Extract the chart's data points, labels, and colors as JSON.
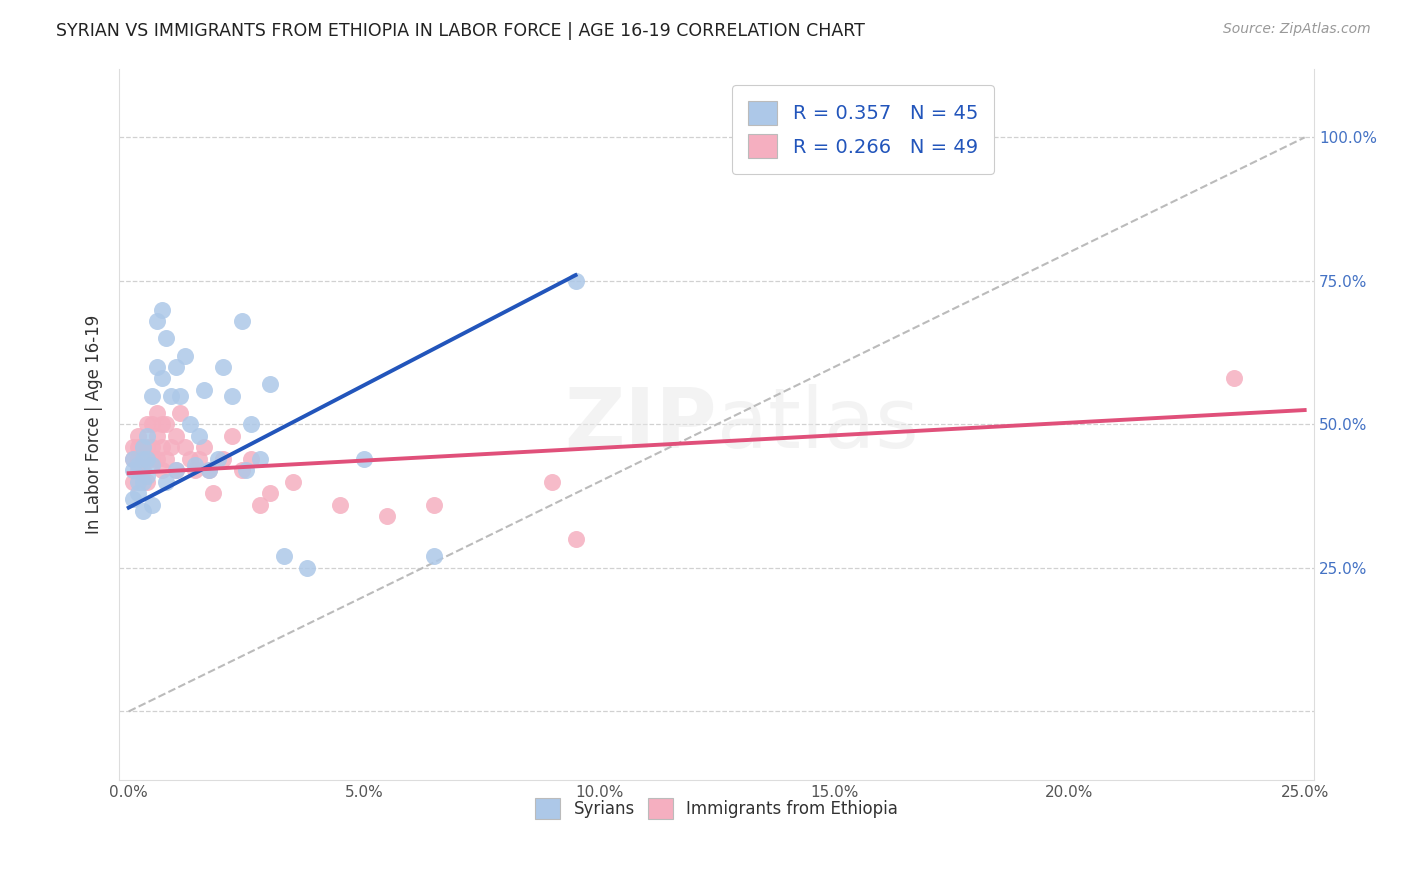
{
  "title": "SYRIAN VS IMMIGRANTS FROM ETHIOPIA IN LABOR FORCE | AGE 16-19 CORRELATION CHART",
  "source": "Source: ZipAtlas.com",
  "ylabel": "In Labor Force | Age 16-19",
  "xlim": [
    -0.002,
    0.252
  ],
  "ylim": [
    -0.12,
    1.12
  ],
  "xtick_values": [
    0.0,
    0.05,
    0.1,
    0.15,
    0.2,
    0.25
  ],
  "xtick_labels": [
    "0.0%",
    "5.0%",
    "10.0%",
    "15.0%",
    "20.0%",
    "25.0%"
  ],
  "ytick_values": [
    0.0,
    0.25,
    0.5,
    0.75,
    1.0
  ],
  "right_ytick_labels": [
    "25.0%",
    "50.0%",
    "75.0%",
    "100.0%"
  ],
  "right_ytick_values": [
    0.25,
    0.5,
    0.75,
    1.0
  ],
  "syrians_color": "#adc8e8",
  "ethiopia_color": "#f5afc0",
  "syrians_line_color": "#2255bb",
  "ethiopia_line_color": "#e0507a",
  "syrians_R": 0.357,
  "syrians_N": 45,
  "ethiopia_R": 0.266,
  "ethiopia_N": 49,
  "legend_text_color": "#2255bb",
  "background_color": "#ffffff",
  "syrians_line_x0": 0.0,
  "syrians_line_y0": 0.355,
  "syrians_line_x1": 0.095,
  "syrians_line_y1": 0.76,
  "ethiopia_line_x0": 0.0,
  "ethiopia_line_y0": 0.415,
  "ethiopia_line_x1": 0.25,
  "ethiopia_line_y1": 0.525,
  "diag_line_x0": 0.0,
  "diag_line_y0": 0.0,
  "diag_line_x1": 0.25,
  "diag_line_y1": 1.0,
  "syrians_x": [
    0.001,
    0.001,
    0.001,
    0.002,
    0.002,
    0.002,
    0.003,
    0.003,
    0.003,
    0.003,
    0.004,
    0.004,
    0.004,
    0.005,
    0.005,
    0.005,
    0.006,
    0.006,
    0.007,
    0.007,
    0.008,
    0.008,
    0.009,
    0.01,
    0.01,
    0.011,
    0.012,
    0.013,
    0.014,
    0.015,
    0.016,
    0.017,
    0.019,
    0.02,
    0.022,
    0.024,
    0.025,
    0.026,
    0.028,
    0.03,
    0.033,
    0.038,
    0.05,
    0.065,
    0.095
  ],
  "syrians_y": [
    0.42,
    0.44,
    0.37,
    0.4,
    0.43,
    0.38,
    0.4,
    0.44,
    0.46,
    0.35,
    0.41,
    0.44,
    0.48,
    0.55,
    0.36,
    0.43,
    0.6,
    0.68,
    0.7,
    0.58,
    0.65,
    0.4,
    0.55,
    0.6,
    0.42,
    0.55,
    0.62,
    0.5,
    0.43,
    0.48,
    0.56,
    0.42,
    0.44,
    0.6,
    0.55,
    0.68,
    0.42,
    0.5,
    0.44,
    0.57,
    0.27,
    0.25,
    0.44,
    0.27,
    0.75
  ],
  "ethiopia_x": [
    0.001,
    0.001,
    0.001,
    0.002,
    0.002,
    0.002,
    0.002,
    0.003,
    0.003,
    0.003,
    0.004,
    0.004,
    0.004,
    0.004,
    0.005,
    0.005,
    0.005,
    0.006,
    0.006,
    0.006,
    0.007,
    0.007,
    0.007,
    0.008,
    0.008,
    0.009,
    0.01,
    0.01,
    0.011,
    0.012,
    0.013,
    0.014,
    0.015,
    0.016,
    0.017,
    0.018,
    0.02,
    0.022,
    0.024,
    0.026,
    0.028,
    0.03,
    0.035,
    0.045,
    0.055,
    0.065,
    0.09,
    0.095,
    0.235
  ],
  "ethiopia_y": [
    0.44,
    0.46,
    0.4,
    0.44,
    0.46,
    0.48,
    0.42,
    0.44,
    0.46,
    0.42,
    0.46,
    0.5,
    0.44,
    0.4,
    0.5,
    0.46,
    0.44,
    0.52,
    0.48,
    0.44,
    0.5,
    0.46,
    0.42,
    0.5,
    0.44,
    0.46,
    0.48,
    0.42,
    0.52,
    0.46,
    0.44,
    0.42,
    0.44,
    0.46,
    0.42,
    0.38,
    0.44,
    0.48,
    0.42,
    0.44,
    0.36,
    0.38,
    0.4,
    0.36,
    0.34,
    0.36,
    0.4,
    0.3,
    0.58
  ]
}
